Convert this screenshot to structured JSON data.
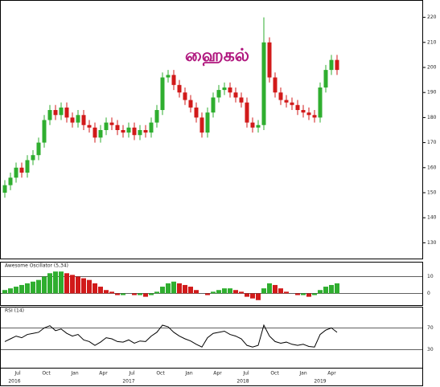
{
  "chart_data": [
    {
      "type": "candlestick",
      "title": "ஹைகல்",
      "open": [
        150,
        153,
        156,
        160,
        158,
        163,
        165,
        170,
        179,
        183,
        181,
        184,
        180,
        178,
        181,
        177,
        176,
        172,
        175,
        178,
        177,
        175,
        174,
        176,
        173,
        175,
        174,
        178,
        183,
        196,
        197,
        193,
        190,
        187,
        184,
        180,
        174,
        182,
        188,
        191,
        192,
        190,
        188,
        186,
        178,
        176,
        177,
        210,
        196,
        190,
        187,
        186,
        185,
        183,
        182,
        181,
        180,
        192,
        199,
        203
      ],
      "high": [
        155,
        158,
        162,
        162,
        165,
        167,
        172,
        181,
        185,
        185,
        186,
        186,
        182,
        183,
        183,
        179,
        178,
        177,
        180,
        180,
        179,
        177,
        178,
        178,
        177,
        177,
        180,
        185,
        198,
        199,
        199,
        195,
        192,
        189,
        186,
        182,
        184,
        190,
        193,
        194,
        194,
        192,
        190,
        188,
        180,
        179,
        220,
        212,
        198,
        192,
        189,
        188,
        187,
        185,
        184,
        183,
        194,
        201,
        205,
        205
      ],
      "low": [
        148,
        151,
        154,
        156,
        156,
        161,
        163,
        168,
        177,
        179,
        179,
        178,
        176,
        176,
        175,
        174,
        170,
        170,
        173,
        175,
        173,
        172,
        172,
        171,
        171,
        172,
        172,
        176,
        181,
        194,
        191,
        188,
        185,
        182,
        178,
        172,
        172,
        180,
        186,
        189,
        188,
        186,
        184,
        176,
        174,
        174,
        175,
        194,
        188,
        185,
        184,
        183,
        181,
        180,
        179,
        178,
        178,
        190,
        197,
        197
      ],
      "close": [
        153,
        156,
        160,
        158,
        163,
        165,
        170,
        179,
        183,
        181,
        184,
        180,
        178,
        181,
        177,
        176,
        172,
        175,
        178,
        177,
        175,
        174,
        176,
        173,
        175,
        174,
        178,
        183,
        196,
        197,
        193,
        190,
        187,
        184,
        180,
        174,
        182,
        188,
        191,
        192,
        190,
        188,
        186,
        178,
        176,
        177,
        210,
        196,
        190,
        187,
        186,
        185,
        183,
        182,
        181,
        180,
        192,
        199,
        203,
        199
      ],
      "up_color": "#2fae2f",
      "down_color": "#d11a1a",
      "ylim": [
        125,
        225
      ],
      "yticks": [
        130,
        140,
        150,
        160,
        170,
        180,
        190,
        200,
        210,
        220
      ]
    },
    {
      "type": "bar",
      "title": "Awesome Oscillator (5,34)",
      "values": [
        2,
        3,
        4,
        5,
        6,
        7,
        8,
        10,
        12,
        13,
        13,
        12,
        11,
        10,
        9,
        8,
        6,
        4,
        2,
        1,
        -1,
        -1,
        0,
        -1,
        -1,
        -2,
        -1,
        1,
        4,
        6,
        7,
        6,
        5,
        4,
        2,
        0,
        -1,
        1,
        2,
        3,
        3,
        2,
        1,
        -2,
        -3,
        -4,
        3,
        6,
        5,
        3,
        1,
        0,
        -1,
        -1,
        -2,
        -1,
        2,
        4,
        5,
        6
      ],
      "up_color": "#2fae2f",
      "down_color": "#d11a1a",
      "ylim": [
        -6,
        15
      ],
      "yticks": [
        0,
        10
      ]
    },
    {
      "type": "line",
      "title": "RSI (14)",
      "values": [
        45,
        50,
        55,
        52,
        58,
        60,
        62,
        70,
        74,
        65,
        68,
        60,
        55,
        58,
        48,
        45,
        38,
        44,
        52,
        50,
        45,
        44,
        48,
        42,
        46,
        45,
        55,
        62,
        75,
        72,
        62,
        55,
        50,
        46,
        40,
        35,
        52,
        60,
        62,
        64,
        58,
        55,
        50,
        38,
        35,
        38,
        75,
        55,
        45,
        42,
        44,
        40,
        38,
        40,
        36,
        35,
        58,
        66,
        70,
        62
      ],
      "color": "#000000",
      "ylim": [
        0,
        100
      ],
      "yticks": [
        30,
        70
      ]
    }
  ],
  "date_axis": {
    "months": [
      "Jul",
      "Oct",
      "Jan",
      "Apr",
      "Jul",
      "Oct",
      "Jan",
      "Apr",
      "Jul",
      "Oct",
      "Jan",
      "Apr"
    ],
    "years": [
      "2016",
      "2017",
      "2018",
      "2019"
    ]
  }
}
